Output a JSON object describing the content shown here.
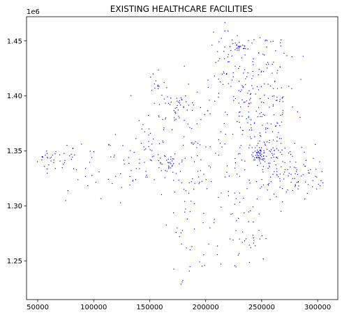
{
  "chart_data": {
    "type": "scatter",
    "title": "EXISTING HEALTHCARE FACILITIES",
    "xlabel": "",
    "ylabel": "",
    "y_offset_label": "1e6",
    "xlim": [
      40000,
      318000
    ],
    "ylim": [
      1215000,
      1472000
    ],
    "x_ticks": [
      50000,
      100000,
      150000,
      200000,
      250000,
      300000
    ],
    "x_tick_labels": [
      "50000",
      "100000",
      "150000",
      "200000",
      "250000",
      "300000"
    ],
    "y_ticks": [
      1250000,
      1300000,
      1350000,
      1400000,
      1450000
    ],
    "y_tick_labels": [
      "1.25",
      "1.30",
      "1.35",
      "1.40",
      "1.45"
    ],
    "grid": false,
    "marker_color": "#0000ff",
    "clusters": [
      {
        "cx": 60000,
        "cy": 1343000,
        "sx": 5000,
        "sy": 5000,
        "n": 22
      },
      {
        "cx": 78000,
        "cy": 1343000,
        "sx": 5000,
        "sy": 6000,
        "n": 14
      },
      {
        "cx": 100000,
        "cy": 1335000,
        "sx": 9000,
        "sy": 14000,
        "n": 20
      },
      {
        "cx": 125000,
        "cy": 1335000,
        "sx": 9000,
        "sy": 12000,
        "n": 20
      },
      {
        "cx": 150000,
        "cy": 1345000,
        "sx": 8000,
        "sy": 15000,
        "n": 40
      },
      {
        "cx": 165000,
        "cy": 1340000,
        "sx": 5000,
        "sy": 5000,
        "n": 25
      },
      {
        "cx": 175000,
        "cy": 1390000,
        "sx": 12000,
        "sy": 9000,
        "n": 55
      },
      {
        "cx": 158000,
        "cy": 1410000,
        "sx": 4000,
        "sy": 6000,
        "n": 15
      },
      {
        "cx": 190000,
        "cy": 1340000,
        "sx": 13000,
        "sy": 20000,
        "n": 60
      },
      {
        "cx": 185000,
        "cy": 1285000,
        "sx": 14000,
        "sy": 20000,
        "n": 30
      },
      {
        "cx": 215000,
        "cy": 1420000,
        "sx": 8000,
        "sy": 20000,
        "n": 45
      },
      {
        "cx": 230000,
        "cy": 1445000,
        "sx": 4000,
        "sy": 3000,
        "n": 25
      },
      {
        "cx": 240000,
        "cy": 1390000,
        "sx": 10000,
        "sy": 25000,
        "n": 110
      },
      {
        "cx": 248000,
        "cy": 1347000,
        "sx": 3000,
        "sy": 2500,
        "n": 45
      },
      {
        "cx": 260000,
        "cy": 1340000,
        "sx": 12000,
        "sy": 20000,
        "n": 110
      },
      {
        "cx": 265000,
        "cy": 1395000,
        "sx": 8000,
        "sy": 15000,
        "n": 40
      },
      {
        "cx": 280000,
        "cy": 1330000,
        "sx": 10000,
        "sy": 13000,
        "n": 40
      },
      {
        "cx": 255000,
        "cy": 1440000,
        "sx": 12000,
        "sy": 10000,
        "n": 30
      },
      {
        "cx": 225000,
        "cy": 1310000,
        "sx": 13000,
        "sy": 25000,
        "n": 40
      },
      {
        "cx": 215000,
        "cy": 1260000,
        "sx": 15000,
        "sy": 10000,
        "n": 15
      },
      {
        "cx": 240000,
        "cy": 1270000,
        "sx": 8000,
        "sy": 14000,
        "n": 15
      },
      {
        "cx": 295000,
        "cy": 1325000,
        "sx": 5000,
        "sy": 6000,
        "n": 12
      }
    ],
    "points": [
      [
        178000,
        1229000
      ],
      [
        179000,
        1231000
      ],
      [
        186000,
        1245000
      ],
      [
        199000,
        1246000
      ],
      [
        287000,
        1436000
      ],
      [
        285000,
        1415000
      ],
      [
        303000,
        1323000
      ],
      [
        298000,
        1327000
      ],
      [
        75000,
        1305000
      ],
      [
        77000,
        1314000
      ],
      [
        54000,
        1345000
      ],
      [
        207000,
        1458000
      ],
      [
        153000,
        1420000
      ],
      [
        181000,
        1427000
      ],
      [
        143000,
        1370000
      ],
      [
        124000,
        1303000
      ]
    ]
  }
}
